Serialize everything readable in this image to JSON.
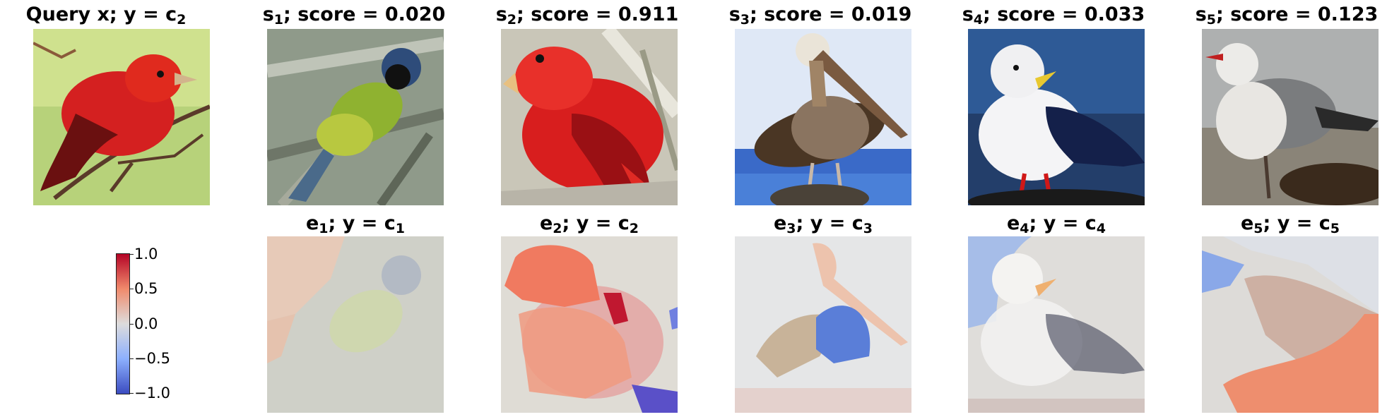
{
  "row1": [
    {
      "title": "Query x; y = c",
      "sub": "2"
    },
    {
      "title_pre": "s",
      "sub_pre": "1",
      "title": "; score = 0.020"
    },
    {
      "title_pre": "s",
      "sub_pre": "2",
      "title": "; score = 0.911"
    },
    {
      "title_pre": "s",
      "sub_pre": "3",
      "title": "; score = 0.019"
    },
    {
      "title_pre": "s",
      "sub_pre": "4",
      "title": "; score = 0.033"
    },
    {
      "title_pre": "s",
      "sub_pre": "5",
      "title": "; score = 0.123"
    }
  ],
  "row2": [
    {
      "a": "e",
      "as": "1",
      "b": "; y = c",
      "bs": "1"
    },
    {
      "a": "e",
      "as": "2",
      "b": "; y = c",
      "bs": "2"
    },
    {
      "a": "e",
      "as": "3",
      "b": "; y = c",
      "bs": "3"
    },
    {
      "a": "e",
      "as": "4",
      "b": "; y = c",
      "bs": "4"
    },
    {
      "a": "e",
      "as": "5",
      "b": "; y = c",
      "bs": "5"
    }
  ],
  "colorbar": {
    "ticks": [
      "1.0",
      "0.5",
      "0.0",
      "−0.5",
      "−1.0"
    ],
    "range": [
      -1.0,
      1.0
    ],
    "colormap": "coolwarm"
  },
  "images": [
    "red-tanager-query",
    "green-jay",
    "red-tanager",
    "brown-pelican",
    "seagull",
    "gull"
  ],
  "colors": {
    "high": "#b40426",
    "mid": "#dddcdc",
    "low": "#3b4cc0"
  }
}
